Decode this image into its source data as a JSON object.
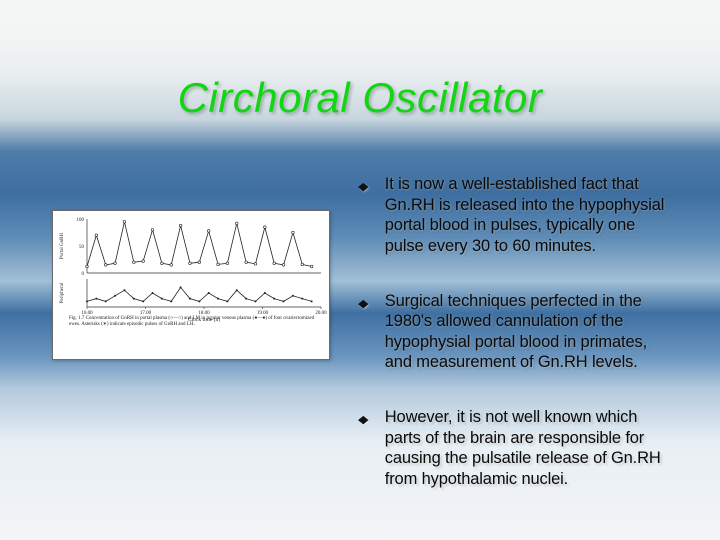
{
  "title": "Circhoral Oscillator",
  "bullets": [
    "It is now a well-established fact that Gn.RH is released into the hypophysial portal blood in pulses, typically one pulse every 30 to 60 minutes.",
    "Surgical techniques perfected in the 1980's allowed cannulation of the hypophysial portal blood in primates, and measurement of Gn.RH levels.",
    "However, it is not well known which parts of the brain are responsible for causing the pulsatile release of Gn.RH from hypothalamic nuclei."
  ],
  "figure": {
    "type": "line",
    "series": [
      {
        "name": "portal",
        "marker": "o",
        "stroke": "#222222",
        "points": [
          [
            0,
            12
          ],
          [
            3,
            70
          ],
          [
            6,
            15
          ],
          [
            9,
            18
          ],
          [
            12,
            95
          ],
          [
            15,
            20
          ],
          [
            18,
            22
          ],
          [
            21,
            80
          ],
          [
            24,
            18
          ],
          [
            27,
            15
          ],
          [
            30,
            88
          ],
          [
            33,
            18
          ],
          [
            36,
            20
          ],
          [
            39,
            78
          ],
          [
            42,
            16
          ],
          [
            45,
            18
          ],
          [
            48,
            92
          ],
          [
            51,
            20
          ],
          [
            54,
            17
          ],
          [
            57,
            85
          ],
          [
            60,
            18
          ],
          [
            63,
            15
          ],
          [
            66,
            75
          ],
          [
            69,
            16
          ],
          [
            72,
            12
          ]
        ]
      },
      {
        "name": "jugular",
        "marker": "bar",
        "stroke": "#222222",
        "points": [
          [
            0,
            2
          ],
          [
            3,
            3
          ],
          [
            6,
            2
          ],
          [
            9,
            4
          ],
          [
            12,
            6
          ],
          [
            15,
            3
          ],
          [
            18,
            2
          ],
          [
            21,
            5
          ],
          [
            24,
            3
          ],
          [
            27,
            2
          ],
          [
            30,
            7
          ],
          [
            33,
            3
          ],
          [
            36,
            2
          ],
          [
            39,
            5
          ],
          [
            42,
            3
          ],
          [
            45,
            2
          ],
          [
            48,
            6
          ],
          [
            51,
            3
          ],
          [
            54,
            2
          ],
          [
            57,
            5
          ],
          [
            60,
            3
          ],
          [
            63,
            2
          ],
          [
            66,
            4
          ],
          [
            69,
            3
          ],
          [
            72,
            2
          ]
        ]
      }
    ],
    "xlim": [
      0,
      75
    ],
    "ylim_top": [
      0,
      100
    ],
    "ylim_bot": [
      0,
      10
    ],
    "xticks": [
      "16.00",
      "17.00",
      "18.00",
      "19.00",
      "20.00"
    ],
    "xlabel": "Clock time (h)",
    "ylabel_top": "Portal GnRH concentration (pg/ml)",
    "ylabel_bot": "Peripheral GnRH (pg/ml)",
    "background_color": "#ffffff",
    "axis_color": "#333333",
    "caption": "Fig. 1.7 Concentration of GnRH in portal plasma (○—○) and LM in jugular venous plasma (●—●) of four ovariectomized ewes. Asterisks (∗) indicate episodic pulses of GnRH and LH."
  },
  "colors": {
    "title": "#13d613",
    "text": "#0a0a0a",
    "bullet_mark": "#111111"
  }
}
